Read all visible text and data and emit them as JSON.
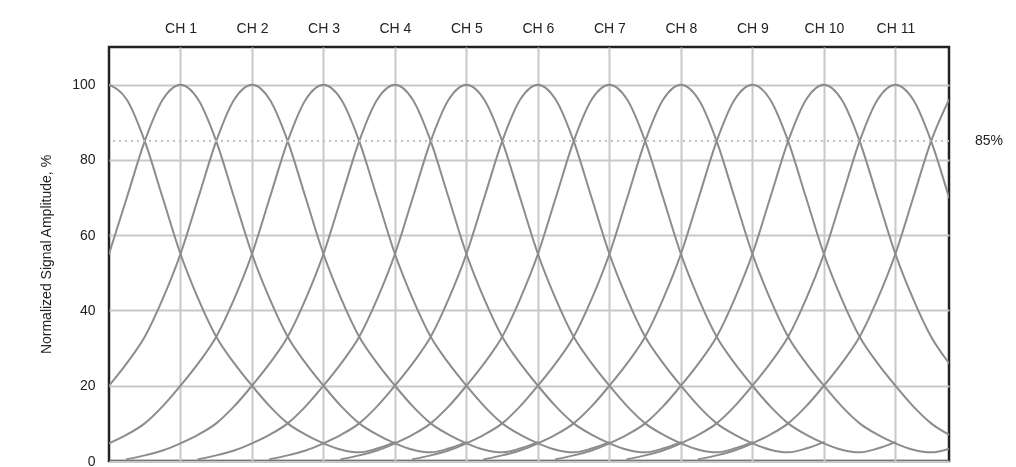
{
  "chart_data": {
    "type": "line",
    "ylabel": "Normalized Signal Amplitude, %",
    "categories": [
      null,
      null,
      null,
      null,
      "CH 1",
      null,
      null,
      null,
      "CH 2",
      null,
      null,
      null,
      "CH 3",
      null,
      null,
      null,
      "CH 4",
      null,
      null,
      null,
      "CH 5",
      null,
      null,
      null,
      "CH 6",
      null,
      null,
      null,
      "CH 7",
      null,
      null,
      null,
      "CH 8",
      null,
      null,
      null,
      "CH 9",
      null,
      null,
      null,
      "CH 10",
      null,
      null,
      null,
      "CH 11",
      null,
      null,
      null
    ],
    "ylim": [
      0,
      110
    ],
    "yticks": [
      0,
      20,
      40,
      60,
      80,
      100
    ],
    "grid": true,
    "legend": false,
    "marker": "none",
    "line_style": "solid",
    "ref_lines": [
      {
        "axis": "y",
        "value": 85,
        "label": "85%",
        "color": "#c0c0c0",
        "line_style": "dotted"
      }
    ],
    "series": [
      {
        "color": "#8c8c8c",
        "values": [
          100,
          96,
          85,
          70,
          55,
          43,
          33,
          26,
          20,
          14.5,
          10,
          7,
          4.7,
          3,
          2.3,
          3.3,
          5,
          null,
          null,
          null,
          null,
          null,
          null,
          null,
          null,
          null,
          null,
          null,
          null,
          null,
          null,
          null,
          null,
          null,
          null,
          null,
          null,
          null,
          null,
          null,
          null,
          null,
          null,
          null,
          null,
          null,
          null,
          null
        ]
      },
      {
        "color": "#8c8c8c",
        "values": [
          55,
          70,
          85,
          96,
          100,
          96,
          85,
          70,
          55,
          43,
          33,
          26,
          20,
          14.5,
          10,
          7,
          4.7,
          3,
          2.3,
          3.3,
          5,
          null,
          null,
          null,
          null,
          null,
          null,
          null,
          null,
          null,
          null,
          null,
          null,
          null,
          null,
          null,
          null,
          null,
          null,
          null,
          null,
          null,
          null,
          null,
          null,
          null,
          null,
          null
        ]
      },
      {
        "color": "#8c8c8c",
        "values": [
          20,
          26,
          33,
          43,
          55,
          70,
          85,
          96,
          100,
          96,
          85,
          70,
          55,
          43,
          33,
          26,
          20,
          14.5,
          10,
          7,
          4.7,
          3,
          2.3,
          3.3,
          5,
          null,
          null,
          null,
          null,
          null,
          null,
          null,
          null,
          null,
          null,
          null,
          null,
          null,
          null,
          null,
          null,
          null,
          null,
          null,
          null,
          null,
          null,
          null
        ]
      },
      {
        "color": "#8c8c8c",
        "values": [
          4.7,
          7,
          10,
          14.5,
          20,
          26,
          33,
          43,
          55,
          70,
          85,
          96,
          100,
          96,
          85,
          70,
          55,
          43,
          33,
          26,
          20,
          14.5,
          10,
          7,
          4.7,
          3,
          2.3,
          3.3,
          5,
          null,
          null,
          null,
          null,
          null,
          null,
          null,
          null,
          null,
          null,
          null,
          null,
          null,
          null,
          null,
          null,
          null,
          null,
          null
        ]
      },
      {
        "color": "#8c8c8c",
        "values": [
          null,
          0.5,
          1.5,
          2.8,
          4.7,
          7,
          10,
          14.5,
          20,
          26,
          33,
          43,
          55,
          70,
          85,
          96,
          100,
          96,
          85,
          70,
          55,
          43,
          33,
          26,
          20,
          14.5,
          10,
          7,
          4.7,
          3,
          2.3,
          3.3,
          5,
          null,
          null,
          null,
          null,
          null,
          null,
          null,
          null,
          null,
          null,
          null,
          null,
          null,
          null,
          null
        ]
      },
      {
        "color": "#8c8c8c",
        "values": [
          null,
          null,
          null,
          null,
          null,
          0.5,
          1.5,
          2.8,
          4.7,
          7,
          10,
          14.5,
          20,
          26,
          33,
          43,
          55,
          70,
          85,
          96,
          100,
          96,
          85,
          70,
          55,
          43,
          33,
          26,
          20,
          14.5,
          10,
          7,
          4.7,
          3,
          2.3,
          3.3,
          5,
          null,
          null,
          null,
          null,
          null,
          null,
          null,
          null,
          null,
          null,
          null
        ]
      },
      {
        "color": "#8c8c8c",
        "values": [
          null,
          null,
          null,
          null,
          null,
          null,
          null,
          null,
          null,
          0.5,
          1.5,
          2.8,
          4.7,
          7,
          10,
          14.5,
          20,
          26,
          33,
          43,
          55,
          70,
          85,
          96,
          100,
          96,
          85,
          70,
          55,
          43,
          33,
          26,
          20,
          14.5,
          10,
          7,
          4.7,
          3,
          2.3,
          3.3,
          5,
          null,
          null,
          null,
          null,
          null,
          null,
          null
        ]
      },
      {
        "color": "#8c8c8c",
        "values": [
          null,
          null,
          null,
          null,
          null,
          null,
          null,
          null,
          null,
          null,
          null,
          null,
          null,
          0.5,
          1.5,
          2.8,
          4.7,
          7,
          10,
          14.5,
          20,
          26,
          33,
          43,
          55,
          70,
          85,
          96,
          100,
          96,
          85,
          70,
          55,
          43,
          33,
          26,
          20,
          14.5,
          10,
          7,
          4.7,
          3,
          2.3,
          3.3,
          5,
          null,
          null,
          null
        ]
      },
      {
        "color": "#8c8c8c",
        "values": [
          null,
          null,
          null,
          null,
          null,
          null,
          null,
          null,
          null,
          null,
          null,
          null,
          null,
          null,
          null,
          null,
          null,
          0.5,
          1.5,
          2.8,
          4.7,
          7,
          10,
          14.5,
          20,
          26,
          33,
          43,
          55,
          70,
          85,
          96,
          100,
          96,
          85,
          70,
          55,
          43,
          33,
          26,
          20,
          14.5,
          10,
          7,
          4.7,
          3,
          2.3,
          3.3
        ]
      },
      {
        "color": "#8c8c8c",
        "values": [
          null,
          null,
          null,
          null,
          null,
          null,
          null,
          null,
          null,
          null,
          null,
          null,
          null,
          null,
          null,
          null,
          null,
          null,
          null,
          null,
          null,
          0.5,
          1.5,
          2.8,
          4.7,
          7,
          10,
          14.5,
          20,
          26,
          33,
          43,
          55,
          70,
          85,
          96,
          100,
          96,
          85,
          70,
          55,
          43,
          33,
          26,
          20,
          14.5,
          10,
          7
        ]
      },
      {
        "color": "#8c8c8c",
        "values": [
          null,
          null,
          null,
          null,
          null,
          null,
          null,
          null,
          null,
          null,
          null,
          null,
          null,
          null,
          null,
          null,
          null,
          null,
          null,
          null,
          null,
          null,
          null,
          null,
          null,
          0.5,
          1.5,
          2.8,
          4.7,
          7,
          10,
          14.5,
          20,
          26,
          33,
          43,
          55,
          70,
          85,
          96,
          100,
          96,
          85,
          70,
          55,
          43,
          33,
          26
        ]
      },
      {
        "color": "#8c8c8c",
        "values": [
          null,
          null,
          null,
          null,
          null,
          null,
          null,
          null,
          null,
          null,
          null,
          null,
          null,
          null,
          null,
          null,
          null,
          null,
          null,
          null,
          null,
          null,
          null,
          null,
          null,
          null,
          null,
          null,
          null,
          0.5,
          1.5,
          2.8,
          4.7,
          7,
          10,
          14.5,
          20,
          26,
          33,
          43,
          55,
          70,
          85,
          96,
          100,
          96,
          85,
          70
        ]
      },
      {
        "color": "#8c8c8c",
        "values": [
          null,
          null,
          null,
          null,
          null,
          null,
          null,
          null,
          null,
          null,
          null,
          null,
          null,
          null,
          null,
          null,
          null,
          null,
          null,
          null,
          null,
          null,
          null,
          null,
          null,
          null,
          null,
          null,
          null,
          null,
          null,
          null,
          null,
          0.5,
          1.5,
          2.8,
          4.7,
          7,
          10,
          14.5,
          20,
          26,
          33,
          43,
          55,
          70,
          85,
          96
        ]
      }
    ]
  }
}
